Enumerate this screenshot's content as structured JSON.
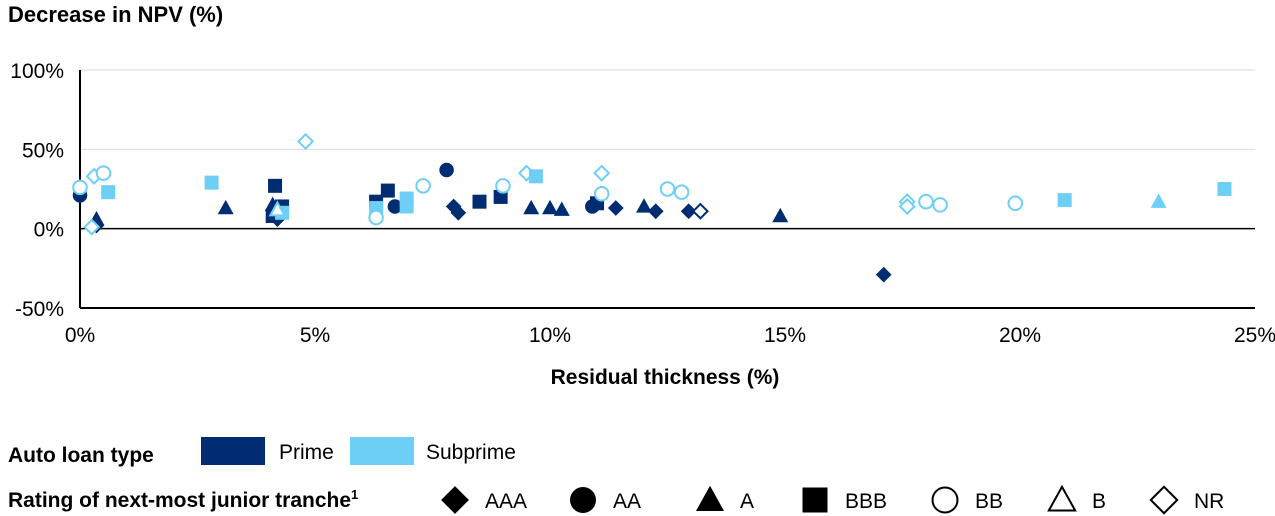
{
  "chart_data": {
    "type": "scatter",
    "ylabel": "Decrease in NPV (%)",
    "xlabel": "Residual thickness (%)",
    "xlim": [
      0,
      25
    ],
    "ylim": [
      -50,
      100
    ],
    "xticks": [
      "0%",
      "5%",
      "10%",
      "15%",
      "20%",
      "25%"
    ],
    "xtick_values": [
      0,
      5,
      10,
      15,
      20,
      25
    ],
    "yticks": [
      "100%",
      "50%",
      "0%",
      "-50%"
    ],
    "ytick_values": [
      100,
      50,
      0,
      -50
    ],
    "grid": "horizontal",
    "colors": {
      "prime": "#002D72",
      "subprime": "#6ECFF6"
    },
    "legend": {
      "loan_type_title": "Auto loan type",
      "loan_types": [
        {
          "key": "prime",
          "label": "Prime"
        },
        {
          "key": "subprime",
          "label": "Subprime"
        }
      ],
      "rating_title": "Rating of next-most junior tranche",
      "rating_title_sup": "1",
      "ratings": [
        {
          "key": "AAA",
          "label": "AAA",
          "shape": "diamond",
          "fill": true
        },
        {
          "key": "AA",
          "label": "AA",
          "shape": "circle",
          "fill": true
        },
        {
          "key": "A",
          "label": "A",
          "shape": "triangle",
          "fill": true
        },
        {
          "key": "BBB",
          "label": "BBB",
          "shape": "square",
          "fill": true
        },
        {
          "key": "BB",
          "label": "BB",
          "shape": "circle",
          "fill": false
        },
        {
          "key": "B",
          "label": "B",
          "shape": "triangle",
          "fill": false
        },
        {
          "key": "NR",
          "label": "NR",
          "shape": "diamond",
          "fill": false
        }
      ]
    },
    "points": [
      {
        "x": 0.0,
        "y": 21,
        "type": "prime",
        "rating": "AA"
      },
      {
        "x": 0.0,
        "y": 26,
        "type": "subprime",
        "rating": "BB"
      },
      {
        "x": 0.3,
        "y": 33,
        "type": "subprime",
        "rating": "NR"
      },
      {
        "x": 0.5,
        "y": 35,
        "type": "subprime",
        "rating": "BB"
      },
      {
        "x": 0.6,
        "y": 23,
        "type": "subprime",
        "rating": "BBB"
      },
      {
        "x": 0.35,
        "y": 6,
        "type": "prime",
        "rating": "A"
      },
      {
        "x": 0.35,
        "y": 2,
        "type": "prime",
        "rating": "AAA"
      },
      {
        "x": 0.25,
        "y": 1,
        "type": "subprime",
        "rating": "NR"
      },
      {
        "x": 2.8,
        "y": 29,
        "type": "subprime",
        "rating": "BBB"
      },
      {
        "x": 3.1,
        "y": 13,
        "type": "prime",
        "rating": "A"
      },
      {
        "x": 4.15,
        "y": 27,
        "type": "prime",
        "rating": "BBB"
      },
      {
        "x": 4.1,
        "y": 15,
        "type": "prime",
        "rating": "A"
      },
      {
        "x": 4.1,
        "y": 8,
        "type": "prime",
        "rating": "BBB"
      },
      {
        "x": 4.3,
        "y": 14,
        "type": "prime",
        "rating": "BBB"
      },
      {
        "x": 4.2,
        "y": 6,
        "type": "prime",
        "rating": "AAA"
      },
      {
        "x": 4.3,
        "y": 10,
        "type": "subprime",
        "rating": "BBB"
      },
      {
        "x": 4.2,
        "y": 12,
        "type": "subprime",
        "rating": "B"
      },
      {
        "x": 4.8,
        "y": 55,
        "type": "subprime",
        "rating": "NR"
      },
      {
        "x": 6.3,
        "y": 17,
        "type": "prime",
        "rating": "BBB"
      },
      {
        "x": 6.3,
        "y": 13,
        "type": "subprime",
        "rating": "BBB"
      },
      {
        "x": 6.3,
        "y": 7,
        "type": "subprime",
        "rating": "BB"
      },
      {
        "x": 6.55,
        "y": 24,
        "type": "prime",
        "rating": "BBB"
      },
      {
        "x": 6.7,
        "y": 14,
        "type": "prime",
        "rating": "AA"
      },
      {
        "x": 6.95,
        "y": 19,
        "type": "subprime",
        "rating": "BBB"
      },
      {
        "x": 6.95,
        "y": 14,
        "type": "subprime",
        "rating": "BBB"
      },
      {
        "x": 7.3,
        "y": 27,
        "type": "subprime",
        "rating": "BB"
      },
      {
        "x": 7.8,
        "y": 37,
        "type": "prime",
        "rating": "AA"
      },
      {
        "x": 7.95,
        "y": 14,
        "type": "prime",
        "rating": "AAA"
      },
      {
        "x": 8.05,
        "y": 10,
        "type": "prime",
        "rating": "AAA"
      },
      {
        "x": 8.5,
        "y": 17,
        "type": "prime",
        "rating": "BBB"
      },
      {
        "x": 8.95,
        "y": 20,
        "type": "prime",
        "rating": "BBB"
      },
      {
        "x": 9.0,
        "y": 27,
        "type": "subprime",
        "rating": "BB"
      },
      {
        "x": 9.5,
        "y": 35,
        "type": "subprime",
        "rating": "NR"
      },
      {
        "x": 9.7,
        "y": 33,
        "type": "subprime",
        "rating": "BBB"
      },
      {
        "x": 9.6,
        "y": 13,
        "type": "prime",
        "rating": "A"
      },
      {
        "x": 10.0,
        "y": 13,
        "type": "prime",
        "rating": "A"
      },
      {
        "x": 10.25,
        "y": 12,
        "type": "prime",
        "rating": "A"
      },
      {
        "x": 10.9,
        "y": 14,
        "type": "prime",
        "rating": "AA"
      },
      {
        "x": 11.0,
        "y": 16,
        "type": "prime",
        "rating": "BBB"
      },
      {
        "x": 11.1,
        "y": 35,
        "type": "subprime",
        "rating": "NR"
      },
      {
        "x": 11.1,
        "y": 22,
        "type": "subprime",
        "rating": "BB"
      },
      {
        "x": 11.4,
        "y": 13,
        "type": "prime",
        "rating": "AAA"
      },
      {
        "x": 12.0,
        "y": 14,
        "type": "prime",
        "rating": "A"
      },
      {
        "x": 12.25,
        "y": 11,
        "type": "prime",
        "rating": "AAA"
      },
      {
        "x": 12.5,
        "y": 25,
        "type": "subprime",
        "rating": "BB"
      },
      {
        "x": 12.8,
        "y": 23,
        "type": "subprime",
        "rating": "BB"
      },
      {
        "x": 12.95,
        "y": 11,
        "type": "prime",
        "rating": "AAA"
      },
      {
        "x": 13.2,
        "y": 11,
        "type": "prime",
        "rating": "NR"
      },
      {
        "x": 14.9,
        "y": 8,
        "type": "prime",
        "rating": "A"
      },
      {
        "x": 17.1,
        "y": -29,
        "type": "prime",
        "rating": "AAA"
      },
      {
        "x": 17.6,
        "y": 17,
        "type": "subprime",
        "rating": "NR"
      },
      {
        "x": 17.6,
        "y": 14,
        "type": "subprime",
        "rating": "NR"
      },
      {
        "x": 18.0,
        "y": 17,
        "type": "subprime",
        "rating": "BB"
      },
      {
        "x": 18.3,
        "y": 15,
        "type": "subprime",
        "rating": "BB"
      },
      {
        "x": 19.9,
        "y": 16,
        "type": "subprime",
        "rating": "BB"
      },
      {
        "x": 20.95,
        "y": 18,
        "type": "subprime",
        "rating": "BBB"
      },
      {
        "x": 22.95,
        "y": 17,
        "type": "subprime",
        "rating": "A"
      },
      {
        "x": 24.35,
        "y": 25,
        "type": "subprime",
        "rating": "BBB"
      }
    ]
  }
}
